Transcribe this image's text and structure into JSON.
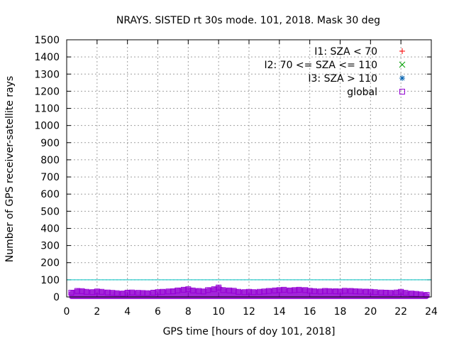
{
  "chart_data": {
    "type": "scatter",
    "title": "NRAYS. SISTED rt 30s mode. 101, 2018. Mask 30 deg",
    "xlabel": "GPS time [hours of doy 101, 2018]",
    "ylabel": "Number of GPS receiver-satellite rays",
    "xlim": [
      0,
      24
    ],
    "ylim": [
      0,
      1500
    ],
    "xticks": [
      "0",
      "2",
      "4",
      "6",
      "8",
      "10",
      "12",
      "14",
      "16",
      "18",
      "20",
      "22",
      "24"
    ],
    "yticks": [
      "0",
      "100",
      "200",
      "300",
      "400",
      "500",
      "600",
      "700",
      "800",
      "900",
      "1000",
      "1100",
      "1200",
      "1300",
      "1400",
      "1500"
    ],
    "grid": true,
    "legend_position": "top-right",
    "threshold_line": {
      "y": 100,
      "color": "#00c0c0"
    },
    "series": [
      {
        "name": "I1: SZA < 70",
        "marker": "+",
        "color": "#ff0000",
        "x": [],
        "y": []
      },
      {
        "name": "I2: 70 <= SZA <= 110",
        "marker": "x",
        "color": "#00a000",
        "x": [],
        "y": []
      },
      {
        "name": "I3: SZA > 110",
        "marker": "*",
        "color": "#0060b0",
        "x": [],
        "y": []
      },
      {
        "name": "global",
        "marker": "square",
        "color": "#9400d3",
        "x": [
          0.3,
          0.7,
          1.0,
          1.3,
          1.7,
          2.0,
          2.3,
          2.7,
          3.0,
          3.3,
          3.7,
          4.0,
          4.3,
          4.7,
          5.0,
          5.3,
          5.7,
          6.0,
          6.3,
          6.7,
          7.0,
          7.3,
          7.7,
          8.0,
          8.3,
          8.7,
          9.0,
          9.3,
          9.7,
          10.0,
          10.3,
          10.7,
          11.0,
          11.3,
          11.7,
          12.0,
          12.3,
          12.7,
          13.0,
          13.3,
          13.7,
          14.0,
          14.3,
          14.7,
          15.0,
          15.3,
          15.7,
          16.0,
          16.3,
          16.7,
          17.0,
          17.3,
          17.7,
          18.0,
          18.3,
          18.7,
          19.0,
          19.3,
          19.7,
          20.0,
          20.3,
          20.7,
          21.0,
          21.3,
          21.7,
          22.0,
          22.3,
          22.7,
          23.0,
          23.3,
          23.7
        ],
        "y": [
          25,
          35,
          34,
          30,
          28,
          32,
          30,
          26,
          24,
          22,
          20,
          25,
          26,
          24,
          23,
          22,
          25,
          28,
          30,
          32,
          33,
          38,
          42,
          45,
          38,
          35,
          32,
          40,
          45,
          55,
          40,
          38,
          36,
          30,
          28,
          30,
          28,
          30,
          32,
          35,
          38,
          40,
          42,
          38,
          40,
          42,
          40,
          36,
          34,
          32,
          35,
          34,
          33,
          32,
          36,
          35,
          33,
          32,
          31,
          30,
          28,
          26,
          25,
          24,
          26,
          30,
          24,
          20,
          18,
          15,
          12
        ]
      }
    ]
  }
}
